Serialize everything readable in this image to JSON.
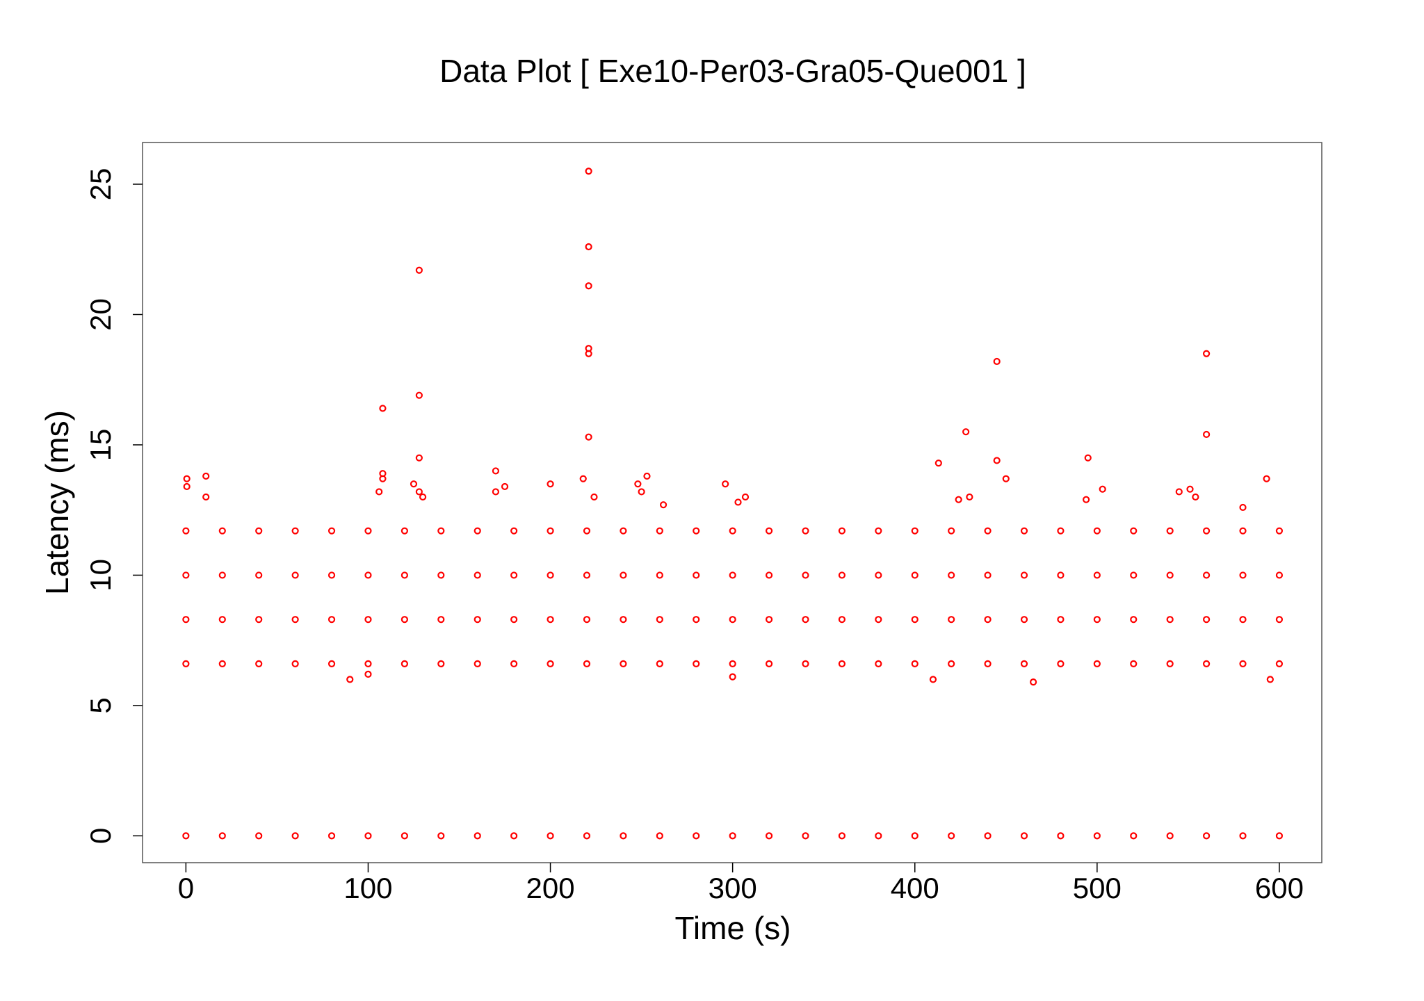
{
  "chart_data": {
    "type": "scatter",
    "title": "Data Plot [ Exe10-Per03-Gra05-Que001 ]",
    "x_label": "Time (s)",
    "y_label": "Latency (ms)",
    "color": "#ff0000",
    "xlim": [
      -23.8,
      623.3
    ],
    "ylim": [
      -1.03,
      26.6
    ],
    "xticks": [
      0,
      100,
      200,
      300,
      400,
      500,
      600
    ],
    "yticks": [
      0,
      5,
      10,
      15,
      20,
      25
    ],
    "x": [
      0,
      20,
      40,
      60,
      80,
      100,
      120,
      140,
      160,
      180,
      200,
      220,
      240,
      260,
      280,
      300,
      320,
      340,
      360,
      380,
      400,
      420,
      440,
      460,
      480,
      500,
      520,
      540,
      560,
      580,
      600,
      0,
      20,
      40,
      60,
      80,
      100,
      120,
      140,
      160,
      180,
      200,
      220,
      240,
      260,
      280,
      300,
      320,
      340,
      360,
      380,
      400,
      420,
      440,
      460,
      480,
      500,
      520,
      540,
      560,
      580,
      600,
      0,
      20,
      40,
      60,
      80,
      100,
      120,
      140,
      160,
      180,
      200,
      220,
      240,
      260,
      280,
      300,
      320,
      340,
      360,
      380,
      400,
      420,
      440,
      460,
      480,
      500,
      520,
      540,
      560,
      580,
      600,
      0,
      20,
      40,
      60,
      80,
      100,
      120,
      140,
      160,
      180,
      200,
      220,
      240,
      260,
      280,
      300,
      320,
      340,
      360,
      380,
      400,
      420,
      440,
      460,
      480,
      500,
      520,
      540,
      560,
      580,
      600,
      0,
      20,
      40,
      60,
      80,
      100,
      120,
      140,
      160,
      180,
      200,
      220,
      240,
      260,
      280,
      300,
      320,
      340,
      360,
      380,
      400,
      420,
      440,
      460,
      480,
      500,
      520,
      540,
      560,
      580,
      600,
      0.5,
      0.5,
      11,
      11,
      108,
      108,
      108,
      106,
      125,
      128,
      128,
      128,
      128,
      130,
      170,
      175,
      170,
      200,
      218,
      221,
      221,
      221,
      221,
      221,
      221,
      224,
      248,
      250,
      253,
      262,
      296,
      307,
      303,
      413,
      428,
      430,
      424,
      445,
      445,
      450,
      495,
      494,
      503,
      545,
      551,
      554,
      560,
      560,
      593,
      580,
      100,
      90,
      465,
      410,
      595,
      300
    ],
    "values": [
      0,
      0,
      0,
      0,
      0,
      0,
      0,
      0,
      0,
      0,
      0,
      0,
      0,
      0,
      0,
      0,
      0,
      0,
      0,
      0,
      0,
      0,
      0,
      0,
      0,
      0,
      0,
      0,
      0,
      0,
      0,
      6.6,
      6.6,
      6.6,
      6.6,
      6.6,
      6.6,
      6.6,
      6.6,
      6.6,
      6.6,
      6.6,
      6.6,
      6.6,
      6.6,
      6.6,
      6.6,
      6.6,
      6.6,
      6.6,
      6.6,
      6.6,
      6.6,
      6.6,
      6.6,
      6.6,
      6.6,
      6.6,
      6.6,
      6.6,
      6.6,
      6.6,
      8.3,
      8.3,
      8.3,
      8.3,
      8.3,
      8.3,
      8.3,
      8.3,
      8.3,
      8.3,
      8.3,
      8.3,
      8.3,
      8.3,
      8.3,
      8.3,
      8.3,
      8.3,
      8.3,
      8.3,
      8.3,
      8.3,
      8.3,
      8.3,
      8.3,
      8.3,
      8.3,
      8.3,
      8.3,
      8.3,
      8.3,
      10,
      10,
      10,
      10,
      10,
      10,
      10,
      10,
      10,
      10,
      10,
      10,
      10,
      10,
      10,
      10,
      10,
      10,
      10,
      10,
      10,
      10,
      10,
      10,
      10,
      10,
      10,
      10,
      10,
      10,
      10,
      11.7,
      11.7,
      11.7,
      11.7,
      11.7,
      11.7,
      11.7,
      11.7,
      11.7,
      11.7,
      11.7,
      11.7,
      11.7,
      11.7,
      11.7,
      11.7,
      11.7,
      11.7,
      11.7,
      11.7,
      11.7,
      11.7,
      11.7,
      11.7,
      11.7,
      11.7,
      11.7,
      11.7,
      11.7,
      11.7,
      11.7,
      13.7,
      13.4,
      13.8,
      13,
      16.4,
      13.9,
      13.7,
      13.2,
      13.5,
      21.7,
      16.9,
      14.5,
      13.2,
      13,
      14,
      13.4,
      13.2,
      13.5,
      13.7,
      25.5,
      22.6,
      21.1,
      18.7,
      18.5,
      15.3,
      13,
      13.5,
      13.2,
      13.8,
      12.7,
      13.5,
      13,
      12.8,
      14.3,
      15.5,
      13,
      12.9,
      18.2,
      14.4,
      13.7,
      14.5,
      12.9,
      13.3,
      13.2,
      13.3,
      13,
      18.5,
      15.4,
      13.7,
      12.6,
      6.2,
      6,
      5.9,
      6,
      6,
      6.1
    ]
  }
}
